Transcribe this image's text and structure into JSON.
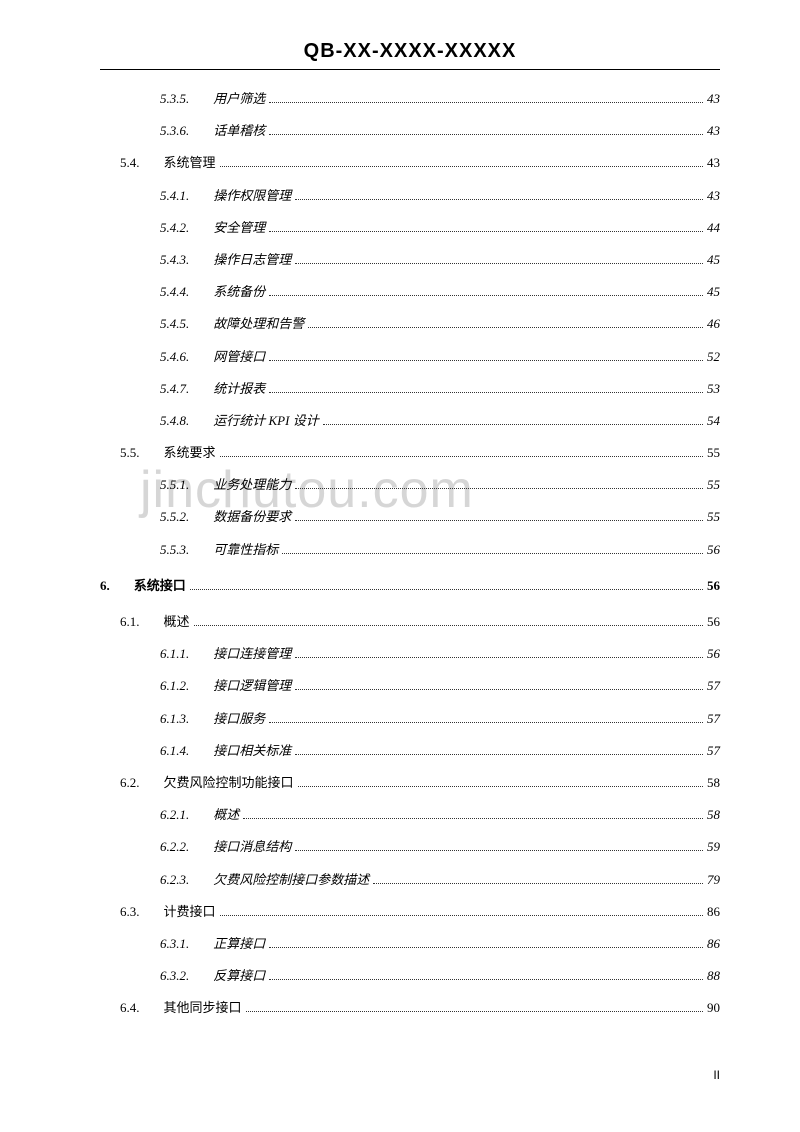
{
  "header": "QB-XX-XXXX-XXXXX",
  "watermark": "jinchutou.com",
  "pageNumber": "II",
  "entries": [
    {
      "level": 3,
      "num": "5.3.5.",
      "title": "用户筛选",
      "page": "43"
    },
    {
      "level": 3,
      "num": "5.3.6.",
      "title": "话单稽核",
      "page": "43"
    },
    {
      "level": 2,
      "num": "5.4.",
      "title": "系统管理",
      "page": "43"
    },
    {
      "level": 3,
      "num": "5.4.1.",
      "title": "操作权限管理",
      "page": "43"
    },
    {
      "level": 3,
      "num": "5.4.2.",
      "title": "安全管理",
      "page": "44"
    },
    {
      "level": 3,
      "num": "5.4.3.",
      "title": "操作日志管理",
      "page": "45"
    },
    {
      "level": 3,
      "num": "5.4.4.",
      "title": "系统备份",
      "page": "45"
    },
    {
      "level": 3,
      "num": "5.4.5.",
      "title": "故障处理和告警",
      "page": "46"
    },
    {
      "level": 3,
      "num": "5.4.6.",
      "title": "网管接口",
      "page": "52"
    },
    {
      "level": 3,
      "num": "5.4.7.",
      "title": "统计报表",
      "page": "53"
    },
    {
      "level": 3,
      "num": "5.4.8.",
      "title": "运行统计 KPI 设计",
      "page": "54"
    },
    {
      "level": 2,
      "num": "5.5.",
      "title": "系统要求",
      "page": "55"
    },
    {
      "level": 3,
      "num": "5.5.1.",
      "title": "业务处理能力",
      "page": "55"
    },
    {
      "level": 3,
      "num": "5.5.2.",
      "title": "数据备份要求",
      "page": "55"
    },
    {
      "level": 3,
      "num": "5.5.3.",
      "title": "可靠性指标",
      "page": "56"
    },
    {
      "level": 1,
      "num": "6.",
      "title": "系统接口",
      "page": "56"
    },
    {
      "level": 2,
      "num": "6.1.",
      "title": "概述",
      "page": "56"
    },
    {
      "level": 3,
      "num": "6.1.1.",
      "title": "接口连接管理",
      "page": "56"
    },
    {
      "level": 3,
      "num": "6.1.2.",
      "title": "接口逻辑管理",
      "page": "57"
    },
    {
      "level": 3,
      "num": "6.1.3.",
      "title": "接口服务",
      "page": "57"
    },
    {
      "level": 3,
      "num": "6.1.4.",
      "title": "接口相关标准",
      "page": "57"
    },
    {
      "level": 2,
      "num": "6.2.",
      "title": "欠费风险控制功能接口",
      "page": "58"
    },
    {
      "level": 3,
      "num": "6.2.1.",
      "title": "概述",
      "page": "58"
    },
    {
      "level": 3,
      "num": "6.2.2.",
      "title": "接口消息结构",
      "page": "59"
    },
    {
      "level": 3,
      "num": "6.2.3.",
      "title": "欠费风险控制接口参数描述",
      "page": "79"
    },
    {
      "level": 2,
      "num": "6.3.",
      "title": "计费接口",
      "page": "86"
    },
    {
      "level": 3,
      "num": "6.3.1.",
      "title": "正算接口",
      "page": "86"
    },
    {
      "level": 3,
      "num": "6.3.2.",
      "title": "反算接口",
      "page": "88"
    },
    {
      "level": 2,
      "num": "6.4.",
      "title": "其他同步接口",
      "page": "90"
    }
  ]
}
